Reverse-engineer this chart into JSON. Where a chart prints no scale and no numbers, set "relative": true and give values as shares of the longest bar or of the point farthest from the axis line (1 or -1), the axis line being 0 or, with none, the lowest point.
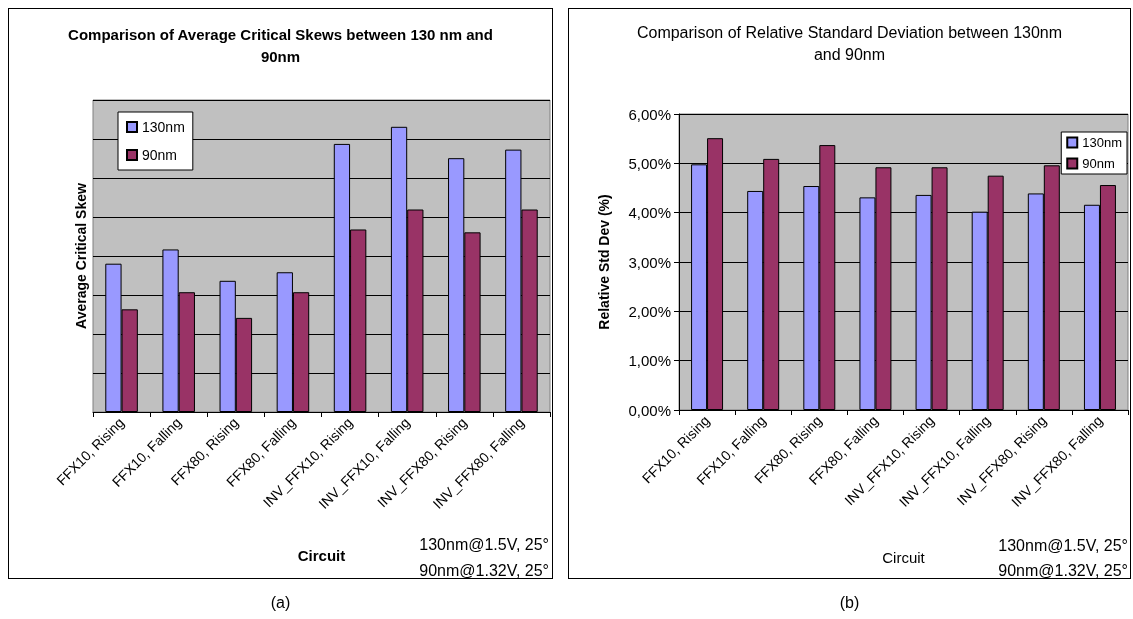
{
  "chart_data": [
    {
      "type": "bar",
      "title": "Comparison of Average Critical Skews between 130 nm and 90nm",
      "xlabel": "Circuit",
      "ylabel": "Average Critical Skew",
      "categories": [
        "FFX10, Rising",
        "FFX10, Falling",
        "FFX80, Rising",
        "FFX80, Falling",
        "INV_FFX10, Rising",
        "INV_FFX10, Falling",
        "INV_FFX80, Rising",
        "INV_FFX80, Falling"
      ],
      "series": [
        {
          "name": "130nm",
          "color": "#9999ff",
          "values": [
            0.52,
            0.57,
            0.46,
            0.49,
            0.94,
            1,
            0.89,
            0.92
          ]
        },
        {
          "name": "90nm",
          "color": "#993366",
          "values": [
            0.36,
            0.42,
            0.33,
            0.42,
            0.64,
            0.71,
            0.63,
            0.71
          ]
        }
      ],
      "relative": true,
      "grid": "y",
      "legend": "top left",
      "annotations": [
        "130nm@1.5V, 25°",
        "90nm@1.32V, 25°",
        "(a)"
      ]
    },
    {
      "type": "bar",
      "title": "Comparison of Relative Standard Deviation between 130nm and 90nm",
      "xlabel": "Circuit",
      "ylabel": "Relative Std Dev (%)",
      "categories": [
        "FFX10, Rising",
        "FFX10, Falling",
        "FFX80, Rising",
        "FFX80, Falling",
        "INV_FFX10, Rising",
        "INV_FFX10, Falling",
        "INV_FFX80, Rising",
        "INV_FFX80, Falling"
      ],
      "series": [
        {
          "name": "130nm",
          "color": "#9999ff",
          "values": [
            4.98,
            4.44,
            4.54,
            4.31,
            4.36,
            4.02,
            4.39,
            4.16
          ]
        },
        {
          "name": "90nm",
          "color": "#993366",
          "values": [
            5.51,
            5.09,
            5.37,
            4.92,
            4.92,
            4.75,
            4.96,
            4.56
          ]
        }
      ],
      "ylim": [
        0,
        6
      ],
      "yticks": [
        {
          "value": 0,
          "label": "0,00%"
        },
        {
          "value": 1,
          "label": "1,00%"
        },
        {
          "value": 2,
          "label": "2,00%"
        },
        {
          "value": 3,
          "label": "3,00%"
        },
        {
          "value": 4,
          "label": "4,00%"
        },
        {
          "value": 5,
          "label": "5,00%"
        },
        {
          "value": 6,
          "label": "6,00%"
        }
      ],
      "grid": "y",
      "legend": "top right",
      "annotations": [
        "130nm@1.5V, 25°",
        "90nm@1.32V, 25°",
        "(b)"
      ]
    }
  ]
}
